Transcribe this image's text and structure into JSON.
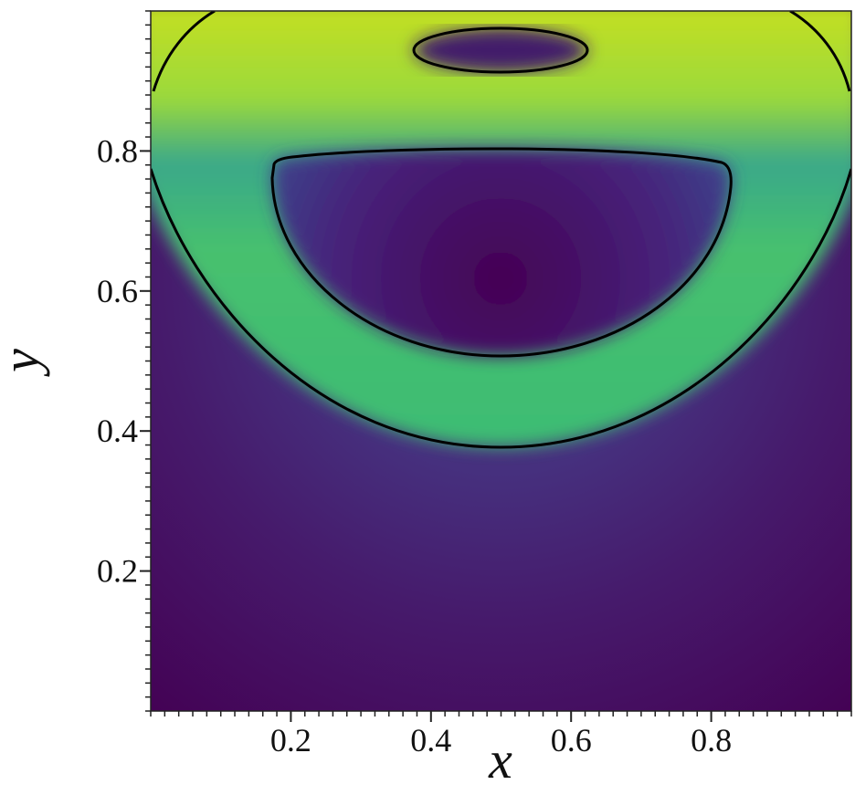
{
  "chart_data": {
    "type": "heatmap",
    "x_label": "x",
    "y_label": "y",
    "xlim": [
      0,
      1
    ],
    "ylim": [
      0,
      1
    ],
    "xticks": [
      0.2,
      0.4,
      0.6,
      0.8
    ],
    "yticks": [
      0.2,
      0.4,
      0.6,
      0.8
    ]
  }
}
